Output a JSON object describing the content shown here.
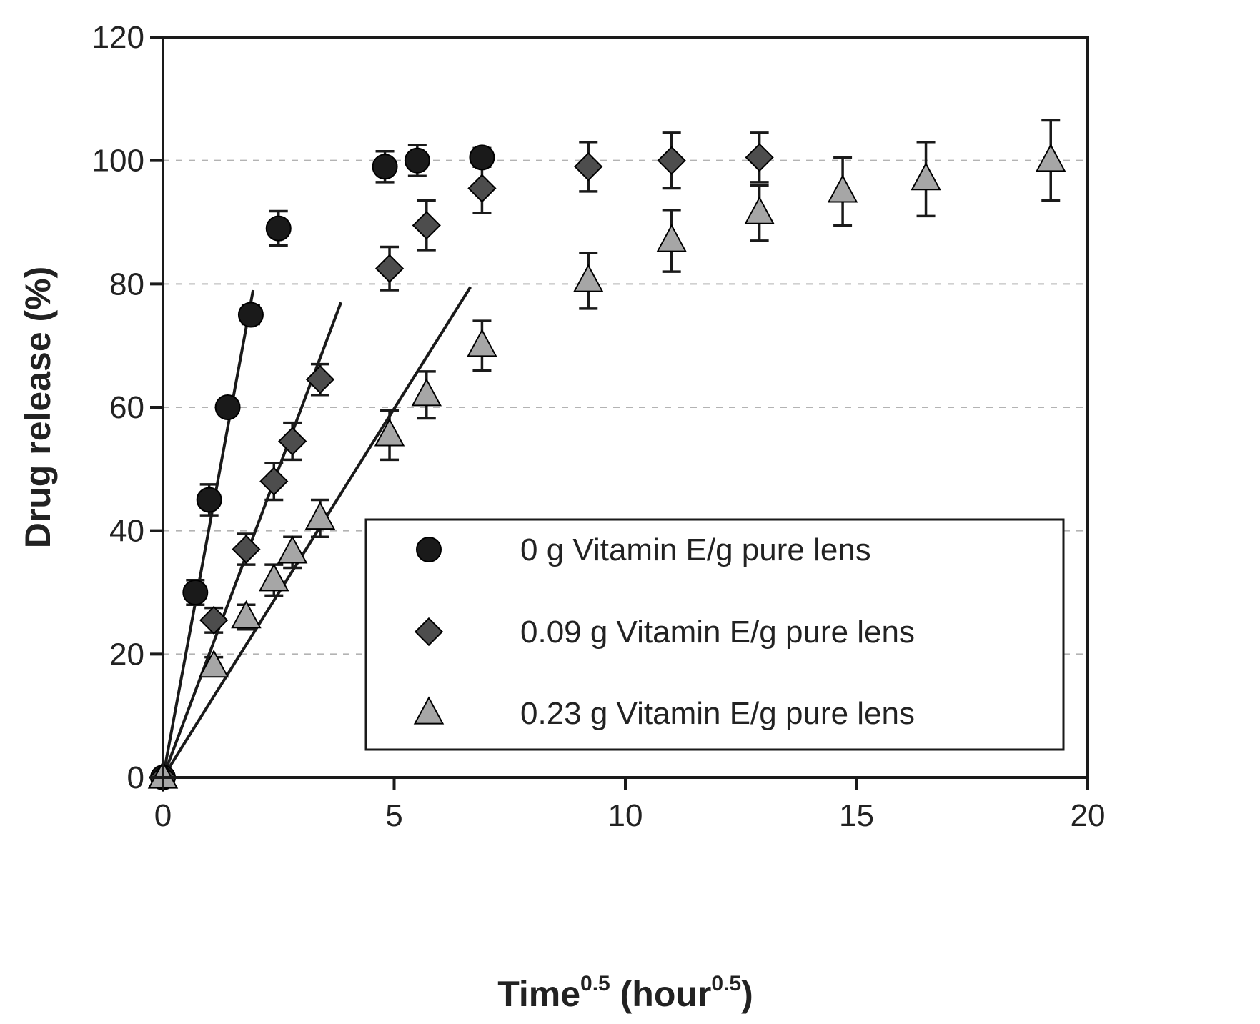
{
  "chart_data": {
    "type": "scatter",
    "xlabel": {
      "base": "Time",
      "sup": "0.5",
      "unit_base": "hour",
      "unit_sup": "0.5"
    },
    "ylabel": "Drug release (%)",
    "xlim": [
      0,
      20
    ],
    "ylim": [
      0,
      120
    ],
    "xticks": [
      "0",
      "5",
      "10",
      "15",
      "20"
    ],
    "yticks": [
      "0",
      "20",
      "40",
      "60",
      "80",
      "100",
      "120"
    ],
    "grid": "horizontal dashed",
    "legend_position": "bottom-right",
    "series": [
      {
        "name": "0 g Vitamin E/g pure lens",
        "marker": "circle",
        "color": "#1a1a1a",
        "points": [
          {
            "x": 0,
            "y": 0,
            "err": 0
          },
          {
            "x": 0.7,
            "y": 30,
            "err": 2
          },
          {
            "x": 1.0,
            "y": 45,
            "err": 2.5
          },
          {
            "x": 1.4,
            "y": 60,
            "err": 1
          },
          {
            "x": 1.9,
            "y": 75,
            "err": 1.5
          },
          {
            "x": 2.5,
            "y": 89,
            "err": 2.8
          },
          {
            "x": 4.8,
            "y": 99,
            "err": 2.5
          },
          {
            "x": 5.5,
            "y": 100,
            "err": 2.5
          },
          {
            "x": 6.9,
            "y": 100.5,
            "err": 1.5
          }
        ],
        "fit_line": {
          "x": [
            0,
            1.95
          ],
          "y": [
            0,
            79
          ]
        }
      },
      {
        "name": "0.09 g Vitamin E/g pure lens",
        "marker": "diamond",
        "color": "#4d4d4d",
        "points": [
          {
            "x": 0,
            "y": 0,
            "err": 0
          },
          {
            "x": 1.1,
            "y": 25.5,
            "err": 2
          },
          {
            "x": 1.8,
            "y": 37,
            "err": 2.5
          },
          {
            "x": 2.4,
            "y": 48,
            "err": 3
          },
          {
            "x": 2.8,
            "y": 54.5,
            "err": 3
          },
          {
            "x": 3.4,
            "y": 64.5,
            "err": 2.5
          },
          {
            "x": 4.9,
            "y": 82.5,
            "err": 3.5
          },
          {
            "x": 5.7,
            "y": 89.5,
            "err": 4
          },
          {
            "x": 6.9,
            "y": 95.5,
            "err": 4
          },
          {
            "x": 9.2,
            "y": 99,
            "err": 4
          },
          {
            "x": 11.0,
            "y": 100,
            "err": 4.5
          },
          {
            "x": 12.9,
            "y": 100.5,
            "err": 4
          }
        ],
        "fit_line": {
          "x": [
            0,
            3.85
          ],
          "y": [
            0,
            77
          ]
        }
      },
      {
        "name": "0.23 g Vitamin E/g pure lens",
        "marker": "triangle",
        "color": "#a6a6a6",
        "points": [
          {
            "x": 0,
            "y": 0,
            "err": 0
          },
          {
            "x": 1.1,
            "y": 18,
            "err": 1.5
          },
          {
            "x": 1.8,
            "y": 26,
            "err": 2
          },
          {
            "x": 2.4,
            "y": 32,
            "err": 2.5
          },
          {
            "x": 2.8,
            "y": 36.5,
            "err": 2.5
          },
          {
            "x": 3.4,
            "y": 42,
            "err": 3
          },
          {
            "x": 4.9,
            "y": 55.5,
            "err": 4
          },
          {
            "x": 5.7,
            "y": 62,
            "err": 3.8
          },
          {
            "x": 6.9,
            "y": 70,
            "err": 4
          },
          {
            "x": 9.2,
            "y": 80.5,
            "err": 4.5
          },
          {
            "x": 11.0,
            "y": 87,
            "err": 5
          },
          {
            "x": 12.9,
            "y": 91.5,
            "err": 4.5
          },
          {
            "x": 14.7,
            "y": 95,
            "err": 5.5
          },
          {
            "x": 16.5,
            "y": 97,
            "err": 6
          },
          {
            "x": 19.2,
            "y": 100,
            "err": 6.5
          }
        ],
        "fit_line": {
          "x": [
            0,
            6.65
          ],
          "y": [
            0,
            79.5
          ]
        }
      }
    ]
  }
}
